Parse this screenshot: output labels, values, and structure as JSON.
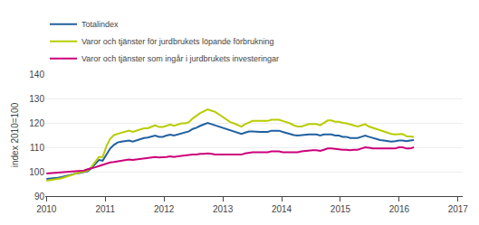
{
  "chart_data": {
    "type": "line",
    "ylabel": "index 2010=100",
    "x": [
      2010,
      2010.0638,
      2010.1276,
      2010.1913,
      2010.2551,
      2010.3189,
      2010.3827,
      2010.4464,
      2010.5102,
      2010.574,
      2010.6378,
      2010.7015,
      2010.7653,
      2010.8291,
      2010.8929,
      2010.9566,
      2011.0204,
      2011.0842,
      2011.148,
      2011.2117,
      2011.2755,
      2011.3393,
      2011.4031,
      2011.4668,
      2011.5306,
      2011.5944,
      2011.6582,
      2011.7219,
      2011.7857,
      2011.8495,
      2011.9133,
      2011.977,
      2012.0408,
      2012.1046,
      2012.1684,
      2012.2321,
      2012.2959,
      2012.3597,
      2012.4235,
      2012.4872,
      2012.551,
      2012.6148,
      2012.6786,
      2012.7423,
      2012.8061,
      2012.8699,
      2012.9337,
      2012.9974,
      2013.0612,
      2013.125,
      2013.1888,
      2013.2526,
      2013.3163,
      2013.3801,
      2013.4439,
      2013.5077,
      2013.5714,
      2013.6352,
      2013.699,
      2013.7628,
      2013.8265,
      2013.8903,
      2013.9541,
      2014.0179,
      2014.0816,
      2014.1454,
      2014.2092,
      2014.273,
      2014.3367,
      2014.4005,
      2014.4643,
      2014.5281,
      2014.5918,
      2014.6556,
      2014.7194,
      2014.7832,
      2014.8469,
      2014.9107,
      2014.9745,
      2015.0383,
      2015.102,
      2015.1658,
      2015.2296,
      2015.2934,
      2015.3571,
      2015.4209,
      2015.4847,
      2015.5485,
      2015.6122,
      2015.676,
      2015.7398,
      2015.8036,
      2015.8673,
      2015.9311,
      2015.9949,
      2016.0587,
      2016.1224,
      2016.1862,
      2016.25
    ],
    "xlim": [
      2009.98,
      2017.08
    ],
    "xticks": [
      2010,
      2011,
      2012,
      2013,
      2014,
      2015,
      2016,
      2017
    ],
    "ylim": [
      90,
      140
    ],
    "yticks": [
      90,
      100,
      110,
      120,
      130,
      140
    ],
    "grid": true,
    "legend": "upper left",
    "series": [
      {
        "name": "Totalindex",
        "color": "#2060a0",
        "values": [
          97.0,
          97.1,
          97.3,
          97.5,
          97.8,
          98.2,
          98.6,
          99.0,
          99.3,
          99.5,
          99.8,
          100.2,
          101.5,
          103.2,
          104.8,
          104.5,
          107.0,
          109.5,
          111.0,
          112.0,
          112.3,
          112.5,
          112.8,
          112.3,
          112.8,
          113.3,
          113.8,
          114.0,
          114.3,
          114.8,
          114.3,
          114.3,
          114.8,
          115.2,
          114.8,
          115.2,
          115.5,
          116.0,
          116.5,
          117.5,
          118.0,
          118.8,
          119.3,
          120.0,
          119.5,
          119.0,
          118.5,
          118.0,
          117.3,
          116.8,
          116.3,
          115.8,
          115.5,
          116.0,
          116.5,
          116.5,
          116.3,
          116.3,
          116.3,
          116.3,
          116.8,
          116.8,
          116.8,
          116.3,
          115.8,
          115.5,
          115.0,
          114.8,
          115.0,
          115.3,
          115.3,
          115.3,
          115.3,
          114.8,
          115.3,
          115.3,
          115.3,
          114.8,
          114.8,
          114.3,
          114.3,
          113.8,
          113.8,
          113.8,
          114.3,
          114.8,
          114.3,
          113.8,
          113.3,
          113.0,
          112.8,
          112.5,
          112.3,
          112.5,
          112.8,
          112.8,
          112.5,
          112.8,
          113.0
        ]
      },
      {
        "name": "Varor och tjänster för jurdbrukets löpande förbrukning",
        "color": "#b8cc00",
        "values": [
          96.3,
          96.5,
          96.8,
          97.0,
          97.3,
          97.8,
          98.3,
          98.8,
          99.3,
          99.8,
          100.0,
          100.5,
          102.0,
          104.0,
          106.0,
          106.0,
          110.5,
          113.5,
          115.0,
          115.5,
          116.0,
          116.3,
          116.8,
          116.3,
          116.8,
          117.3,
          117.8,
          117.8,
          118.3,
          119.0,
          118.3,
          118.3,
          118.8,
          119.3,
          118.8,
          119.3,
          119.8,
          119.8,
          120.3,
          121.8,
          123.0,
          124.0,
          124.8,
          125.5,
          125.0,
          124.5,
          123.5,
          122.5,
          121.3,
          120.3,
          119.8,
          119.0,
          118.5,
          119.5,
          120.3,
          120.8,
          120.8,
          120.8,
          120.8,
          120.8,
          121.3,
          121.3,
          121.3,
          120.8,
          120.3,
          119.8,
          119.0,
          118.5,
          118.5,
          119.0,
          119.5,
          119.5,
          119.5,
          119.0,
          120.0,
          121.0,
          121.0,
          120.5,
          120.5,
          120.0,
          119.8,
          119.3,
          119.0,
          118.5,
          119.0,
          119.5,
          118.5,
          118.0,
          117.3,
          117.0,
          116.5,
          116.0,
          115.5,
          115.3,
          115.5,
          115.5,
          114.5,
          114.3,
          114.3
        ]
      },
      {
        "name": "Varor och tjänster som ingår i jurdbrukets investeringar",
        "color": "#cc007a",
        "values": [
          99.3,
          99.4,
          99.5,
          99.6,
          99.7,
          99.8,
          99.9,
          100.0,
          100.1,
          100.3,
          100.5,
          101.0,
          101.3,
          101.8,
          102.3,
          102.8,
          103.3,
          103.8,
          104.0,
          104.3,
          104.5,
          104.8,
          105.0,
          104.8,
          105.0,
          105.3,
          105.5,
          105.5,
          105.8,
          106.0,
          105.8,
          105.8,
          106.0,
          106.3,
          106.0,
          106.3,
          106.5,
          106.5,
          106.8,
          107.0,
          107.0,
          107.3,
          107.3,
          107.5,
          107.3,
          107.0,
          107.0,
          107.0,
          107.0,
          106.8,
          106.8,
          106.8,
          107.0,
          107.5,
          107.8,
          108.0,
          108.0,
          108.0,
          108.0,
          108.0,
          108.3,
          108.3,
          108.3,
          108.0,
          108.0,
          108.0,
          108.0,
          108.0,
          108.3,
          108.5,
          108.5,
          108.8,
          108.8,
          108.5,
          109.0,
          109.5,
          109.5,
          109.3,
          109.3,
          109.0,
          109.0,
          108.8,
          109.0,
          109.0,
          109.5,
          110.0,
          109.8,
          109.5,
          109.5,
          109.5,
          109.5,
          109.3,
          109.5,
          109.5,
          110.0,
          110.0,
          109.5,
          109.5,
          110.0
        ]
      }
    ]
  }
}
